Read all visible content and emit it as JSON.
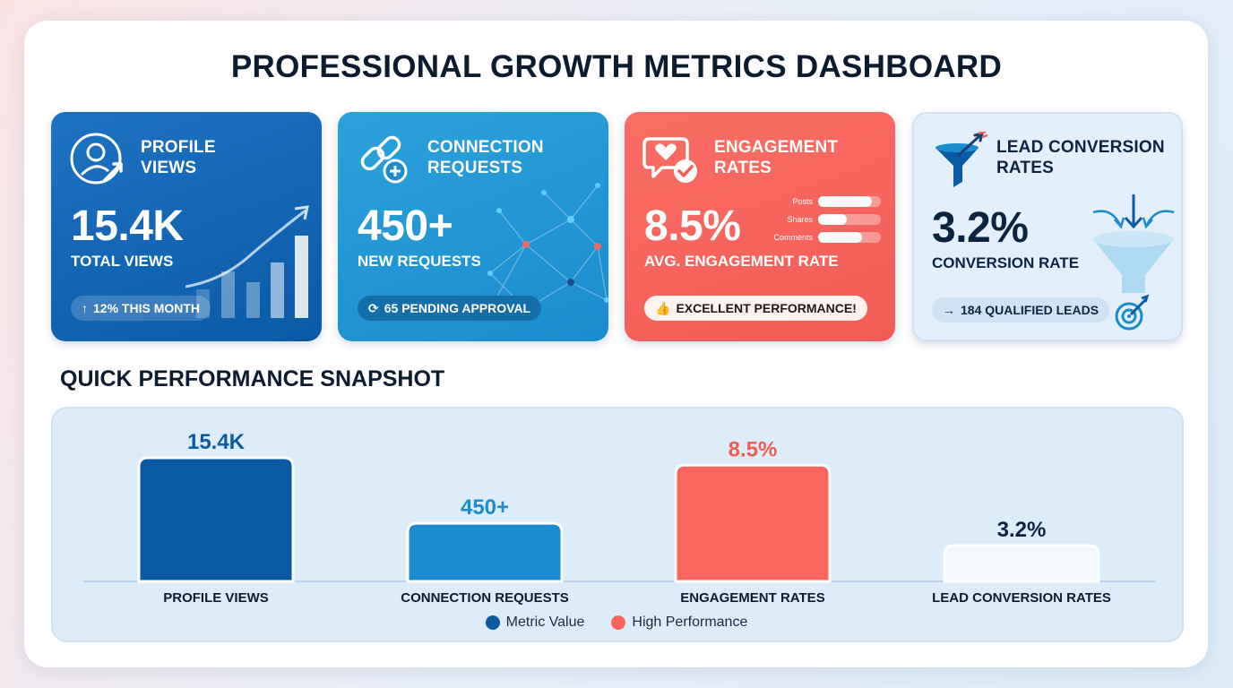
{
  "title": "PROFESSIONAL GROWTH METRICS DASHBOARD",
  "cards": [
    {
      "title": "PROFILE\nVIEWS",
      "value": "15.4K",
      "subtitle": "TOTAL VIEWS",
      "pill_icon": "↑",
      "pill_text": "12% THIS MONTH",
      "icon": "user-growth-icon"
    },
    {
      "title": "CONNECTION\nREQUESTS",
      "value": "450+",
      "subtitle": "NEW REQUESTS",
      "pill_icon": "⟳",
      "pill_text": "65 PENDING APPROVAL",
      "icon": "link-add-icon"
    },
    {
      "title": "ENGAGEMENT\nRATES",
      "value": "8.5%",
      "subtitle": "AVG. ENGAGEMENT RATE",
      "pill_icon": "👍",
      "pill_text": "EXCELLENT PERFORMANCE!",
      "icon": "heart-check-icon",
      "breakdown": [
        {
          "label": "Posts",
          "level": 0.85
        },
        {
          "label": "Shares",
          "level": 0.45
        },
        {
          "label": "Comments",
          "level": 0.7
        }
      ]
    },
    {
      "title": "LEAD CONVERSION\nRATES",
      "value": "3.2%",
      "subtitle": "CONVERSION RATE",
      "pill_icon": "→",
      "pill_text": "184 QUALIFIED LEADS",
      "icon": "funnel-target-icon"
    }
  ],
  "snapshot_title": "QUICK PERFORMANCE SNAPSHOT",
  "colors": {
    "metric": "#0b5aa6",
    "connection": "#1a8ccd",
    "high": "#f9665e",
    "lead": "#f3f8fd"
  },
  "chart_data": {
    "type": "bar",
    "title": "",
    "categories": [
      "PROFILE VIEWS",
      "CONNECTION REQUESTS",
      "ENGAGEMENT RATES",
      "LEAD CONVERSION RATES"
    ],
    "data_labels": [
      "15.4K",
      "450+",
      "8.5%",
      "3.2%"
    ],
    "relative_heights": [
      1.0,
      0.47,
      0.94,
      0.29
    ],
    "series": [
      {
        "name": "Metric Value",
        "color": "#0b5aa6"
      },
      {
        "name": "High Performance",
        "color": "#f9665e"
      }
    ],
    "bar_colors": [
      "#0b5aa6",
      "#1a8ccd",
      "#f9665e",
      "#f3f8fd"
    ],
    "label_colors": [
      "#0b5aa6",
      "#1a8ccd",
      "#f25c55",
      "#0d2440"
    ],
    "legend_position": "bottom-center",
    "grid": false
  }
}
